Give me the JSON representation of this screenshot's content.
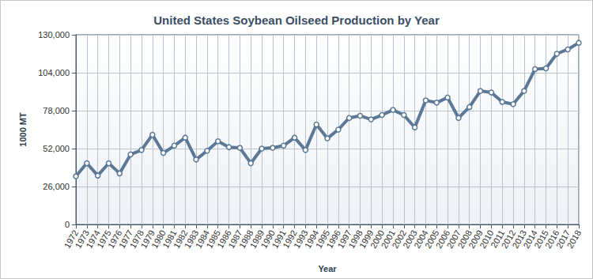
{
  "chart_data": {
    "type": "line",
    "title": "United States Soybean Oilseed Production by Year",
    "x_label": "Year",
    "y_label": "1000 MT",
    "categories": [
      "1972",
      "1973",
      "1974",
      "1975",
      "1976",
      "1977",
      "1978",
      "1979",
      "1980",
      "1981",
      "1982",
      "1983",
      "1984",
      "1985",
      "1986",
      "1987",
      "1988",
      "1989",
      "1990",
      "1991",
      "1992",
      "1993",
      "1994",
      "1995",
      "1996",
      "1997",
      "1998",
      "1999",
      "2000",
      "2001",
      "2002",
      "2003",
      "2004",
      "2005",
      "2006",
      "2007",
      "2008",
      "2009",
      "2010",
      "2011",
      "2012",
      "2013",
      "2014",
      "2015",
      "2016",
      "2017",
      "2018"
    ],
    "values": [
      33000,
      42000,
      33500,
      42000,
      35000,
      48000,
      51000,
      61500,
      49000,
      54000,
      59500,
      44500,
      50500,
      57000,
      53000,
      52500,
      42000,
      52000,
      52500,
      54000,
      59500,
      51000,
      68500,
      59000,
      65000,
      73000,
      74500,
      72000,
      75000,
      78500,
      75000,
      66500,
      85000,
      83500,
      87000,
      73000,
      80500,
      91500,
      90500,
      84000,
      82500,
      91500,
      106500,
      107000,
      117000,
      120000,
      124500
    ],
    "color": "#5b7896",
    "marker": "circle",
    "ylim": [
      0,
      130000
    ],
    "yticks": [
      0,
      {
        "value": 26000,
        "label": "26,000"
      },
      {
        "value": 52000,
        "label": "52,000"
      },
      {
        "value": 78000,
        "label": "78,000"
      },
      {
        "value": 104000,
        "label": "104,000"
      },
      {
        "value": 130000,
        "label": "130,000"
      }
    ],
    "grid": true
  }
}
